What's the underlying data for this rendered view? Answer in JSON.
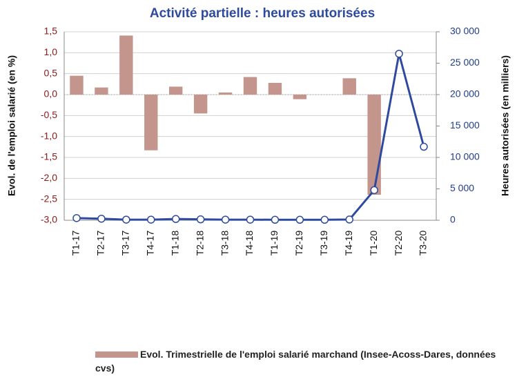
{
  "chart_data": {
    "type": "bar-line",
    "title": "Activité partielle : heures autorisées",
    "y_label": "Evol. de l'emploi salarié (en %)",
    "y2_label": "Heures autorisées (en milliers)",
    "categories": [
      "T1-17",
      "T2-17",
      "T3-17",
      "T4-17",
      "T1-18",
      "T2-18",
      "T3-18",
      "T4-18",
      "T1-19",
      "T2-19",
      "T3-19",
      "T4-19",
      "T1-20",
      "T2-20",
      "T3-20"
    ],
    "series": [
      {
        "name": "Evol. Trimestrielle de l'emploi salarié marchand (Insee-Acoss-Dares, données cvs)",
        "type": "bar",
        "color": "#c4958c",
        "values": [
          0.45,
          0.17,
          1.41,
          -1.33,
          0.19,
          -0.45,
          0.05,
          0.42,
          0.28,
          -0.11,
          null,
          0.39,
          -2.39,
          null,
          null
        ]
      },
      {
        "type": "line",
        "axis": "y2",
        "color": "#2e4a9e",
        "values": [
          350,
          250,
          100,
          100,
          200,
          150,
          100,
          100,
          80,
          80,
          80,
          120,
          4800,
          26500,
          11700
        ]
      }
    ],
    "ylim": [
      -3,
      1.5
    ],
    "yticks": [
      {
        "value": -3,
        "label": "-3,0"
      },
      {
        "value": -2.5,
        "label": "-2,5"
      },
      {
        "value": -2,
        "label": "-2,0"
      },
      {
        "value": -1.5,
        "label": "-1,5"
      },
      {
        "value": -1,
        "label": "-1,0"
      },
      {
        "value": -0.5,
        "label": "-0,5"
      },
      {
        "value": 0,
        "label": "0,0"
      },
      {
        "value": 0.5,
        "label": "0,5"
      },
      {
        "value": 1,
        "label": "1,0"
      },
      {
        "value": 1.5,
        "label": "1,5"
      }
    ],
    "y2lim": [
      0,
      30000
    ],
    "y2ticks": [
      0,
      {
        "value": 5000,
        "label": "5 000"
      },
      {
        "value": 10000,
        "label": "10 000"
      },
      {
        "value": 15000,
        "label": "15 000"
      },
      {
        "value": 20000,
        "label": "20 000"
      },
      {
        "value": 25000,
        "label": "25 000"
      },
      {
        "value": 30000,
        "label": "30 000"
      }
    ],
    "grid": true
  }
}
